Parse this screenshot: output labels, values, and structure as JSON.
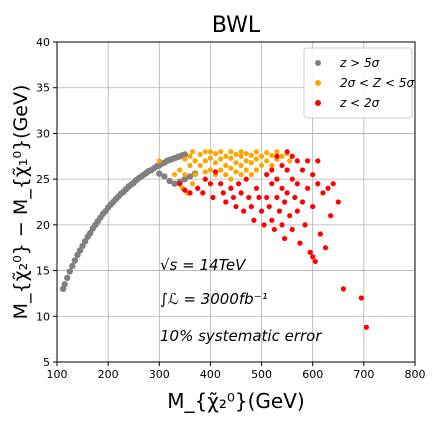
{
  "chart_data": {
    "type": "scatter",
    "title": "BWL",
    "xlabel": "M_{χ̃₂⁰}(GeV)",
    "ylabel": "M_{χ̃₂⁰} − M_{χ̃₁⁰}(GeV)",
    "xlim": [
      100,
      800
    ],
    "ylim": [
      5,
      40
    ],
    "xticks": [
      100,
      200,
      300,
      400,
      500,
      600,
      700,
      800
    ],
    "yticks": [
      5,
      10,
      15,
      20,
      25,
      30,
      35,
      40
    ],
    "grid": true,
    "legend_position": "top-right",
    "annotations": [
      "√s = 14TeV",
      "∫ℒ = 3000fb⁻¹",
      "10% systematic error"
    ],
    "series": [
      {
        "name": "z > 5σ",
        "color": "#808080",
        "points": [
          [
            112,
            13.0
          ],
          [
            115,
            13.5
          ],
          [
            120,
            14.2
          ],
          [
            125,
            14.9
          ],
          [
            130,
            15.5
          ],
          [
            135,
            16.1
          ],
          [
            140,
            16.7
          ],
          [
            145,
            17.2
          ],
          [
            150,
            17.7
          ],
          [
            155,
            18.2
          ],
          [
            160,
            18.7
          ],
          [
            165,
            19.1
          ],
          [
            170,
            19.6
          ],
          [
            175,
            20.0
          ],
          [
            180,
            20.4
          ],
          [
            185,
            20.8
          ],
          [
            190,
            21.2
          ],
          [
            195,
            21.5
          ],
          [
            200,
            21.9
          ],
          [
            205,
            22.2
          ],
          [
            210,
            22.5
          ],
          [
            215,
            22.8
          ],
          [
            220,
            23.1
          ],
          [
            225,
            23.4
          ],
          [
            230,
            23.6
          ],
          [
            235,
            23.9
          ],
          [
            240,
            24.2
          ],
          [
            245,
            24.4
          ],
          [
            250,
            24.6
          ],
          [
            255,
            24.9
          ],
          [
            260,
            25.1
          ],
          [
            265,
            25.3
          ],
          [
            270,
            25.5
          ],
          [
            275,
            25.7
          ],
          [
            280,
            25.9
          ],
          [
            285,
            26.0
          ],
          [
            290,
            26.2
          ],
          [
            295,
            26.4
          ],
          [
            300,
            26.5
          ],
          [
            305,
            26.7
          ],
          [
            310,
            26.8
          ],
          [
            315,
            27.0
          ],
          [
            320,
            27.1
          ],
          [
            325,
            27.2
          ],
          [
            330,
            27.3
          ],
          [
            335,
            27.4
          ],
          [
            340,
            27.5
          ],
          [
            345,
            27.6
          ],
          [
            350,
            27.7
          ],
          [
            300,
            25.6
          ],
          [
            310,
            25.3
          ],
          [
            320,
            24.8
          ],
          [
            330,
            24.5
          ],
          [
            340,
            24.7
          ],
          [
            350,
            25.0
          ],
          [
            360,
            25.3
          ],
          [
            370,
            25.6
          ]
        ]
      },
      {
        "name": "2σ < Z < 5σ",
        "color": "#ffa500",
        "points": [
          [
            300,
            27.0
          ],
          [
            330,
            25.5
          ],
          [
            340,
            26.0
          ],
          [
            350,
            25.5
          ],
          [
            350,
            27.2
          ],
          [
            360,
            26.5
          ],
          [
            360,
            27.5
          ],
          [
            365,
            28.0
          ],
          [
            370,
            25.5
          ],
          [
            370,
            27.0
          ],
          [
            380,
            26.5
          ],
          [
            380,
            27.7
          ],
          [
            390,
            25.8
          ],
          [
            390,
            27.0
          ],
          [
            390,
            28.0
          ],
          [
            400,
            26.0
          ],
          [
            400,
            27.3
          ],
          [
            400,
            28.0
          ],
          [
            410,
            25.5
          ],
          [
            410,
            26.8
          ],
          [
            410,
            27.8
          ],
          [
            420,
            26.0
          ],
          [
            420,
            27.2
          ],
          [
            420,
            28.0
          ],
          [
            430,
            25.5
          ],
          [
            430,
            26.5
          ],
          [
            430,
            27.5
          ],
          [
            440,
            25.0
          ],
          [
            440,
            26.2
          ],
          [
            440,
            27.3
          ],
          [
            440,
            28.0
          ],
          [
            450,
            25.8
          ],
          [
            450,
            26.8
          ],
          [
            450,
            27.7
          ],
          [
            460,
            25.5
          ],
          [
            460,
            26.5
          ],
          [
            460,
            27.5
          ],
          [
            460,
            28.0
          ],
          [
            470,
            26.0
          ],
          [
            470,
            27.0
          ],
          [
            470,
            27.8
          ],
          [
            480,
            25.5
          ],
          [
            480,
            26.8
          ],
          [
            480,
            27.6
          ],
          [
            490,
            26.0
          ],
          [
            490,
            27.2
          ],
          [
            490,
            28.0
          ],
          [
            500,
            26.5
          ],
          [
            500,
            27.5
          ],
          [
            510,
            27.0
          ],
          [
            510,
            27.9
          ],
          [
            520,
            26.5
          ],
          [
            520,
            27.6
          ],
          [
            530,
            27.2
          ],
          [
            530,
            28.0
          ],
          [
            540,
            27.5
          ],
          [
            550,
            27.8
          ],
          [
            555,
            27.0
          ],
          [
            345,
            24.0
          ],
          [
            355,
            23.5
          ],
          [
            365,
            24.5
          ]
        ]
      },
      {
        "name": "z < 2σ",
        "color": "#ff0000",
        "points": [
          [
            340,
            24.5
          ],
          [
            350,
            23.8
          ],
          [
            360,
            23.5
          ],
          [
            375,
            24.0
          ],
          [
            385,
            23.5
          ],
          [
            390,
            25.0
          ],
          [
            400,
            24.5
          ],
          [
            405,
            23.0
          ],
          [
            410,
            25.8
          ],
          [
            420,
            24.5
          ],
          [
            425,
            23.5
          ],
          [
            430,
            22.5
          ],
          [
            440,
            24.0
          ],
          [
            445,
            23.0
          ],
          [
            450,
            22.0
          ],
          [
            455,
            24.5
          ],
          [
            460,
            23.5
          ],
          [
            465,
            21.5
          ],
          [
            470,
            25.0
          ],
          [
            475,
            23.0
          ],
          [
            480,
            22.0
          ],
          [
            485,
            20.5
          ],
          [
            490,
            24.0
          ],
          [
            495,
            23.0
          ],
          [
            500,
            21.5
          ],
          [
            505,
            20.0
          ],
          [
            510,
            25.5
          ],
          [
            510,
            23.0
          ],
          [
            515,
            22.0
          ],
          [
            520,
            26.0
          ],
          [
            520,
            24.5
          ],
          [
            520,
            20.5
          ],
          [
            525,
            19.5
          ],
          [
            530,
            27.5
          ],
          [
            530,
            25.0
          ],
          [
            530,
            23.0
          ],
          [
            535,
            21.5
          ],
          [
            540,
            26.5
          ],
          [
            540,
            24.0
          ],
          [
            540,
            20.0
          ],
          [
            545,
            22.5
          ],
          [
            545,
            18.5
          ],
          [
            550,
            28.0
          ],
          [
            550,
            26.0
          ],
          [
            550,
            23.5
          ],
          [
            555,
            21.0
          ],
          [
            560,
            27.5
          ],
          [
            560,
            25.0
          ],
          [
            560,
            19.5
          ],
          [
            565,
            23.0
          ],
          [
            570,
            27.0
          ],
          [
            570,
            24.5
          ],
          [
            570,
            21.5
          ],
          [
            575,
            18.0
          ],
          [
            580,
            26.0
          ],
          [
            580,
            22.5
          ],
          [
            585,
            20.0
          ],
          [
            590,
            27.0
          ],
          [
            590,
            24.0
          ],
          [
            595,
            17.0
          ],
          [
            600,
            25.5
          ],
          [
            600,
            22.0
          ],
          [
            600,
            16.5
          ],
          [
            605,
            16.0
          ],
          [
            610,
            27.0
          ],
          [
            610,
            24.5
          ],
          [
            615,
            19.0
          ],
          [
            620,
            23.5
          ],
          [
            625,
            17.5
          ],
          [
            630,
            24.0
          ],
          [
            635,
            21.0
          ],
          [
            640,
            24.5
          ],
          [
            650,
            22.5
          ],
          [
            660,
            13.0
          ],
          [
            695,
            12.0
          ],
          [
            705,
            8.8
          ]
        ]
      }
    ]
  }
}
